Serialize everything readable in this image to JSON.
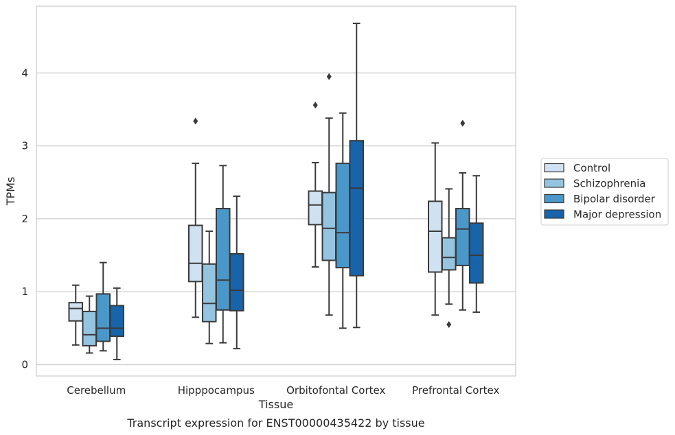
{
  "chart_data": {
    "type": "box",
    "xlabel": "Tissue",
    "ylabel": "TPMs",
    "caption": "Transcript expression for ENST00000435422 by tissue",
    "ylim": [
      -0.15,
      4.9
    ],
    "yticks": [
      0,
      1,
      2,
      3,
      4
    ],
    "grid": "horizontal",
    "legend_position": "right",
    "categories": [
      "Cerebellum",
      "Hipppocampus",
      "Orbitofontal Cortex",
      "Prefrontal Cortex"
    ],
    "series": [
      {
        "name": "Control",
        "color": "#d0e1f2",
        "boxes": [
          {
            "whislo": 0.27,
            "q1": 0.6,
            "med": 0.77,
            "q3": 0.85,
            "whishi": 1.09,
            "fliers": []
          },
          {
            "whislo": 0.65,
            "q1": 1.14,
            "med": 1.39,
            "q3": 1.91,
            "whishi": 2.76,
            "fliers": [
              3.34
            ]
          },
          {
            "whislo": 1.34,
            "q1": 1.92,
            "med": 2.19,
            "q3": 2.38,
            "whishi": 2.77,
            "fliers": [
              3.56
            ]
          },
          {
            "whislo": 0.68,
            "q1": 1.27,
            "med": 1.83,
            "q3": 2.24,
            "whishi": 3.04,
            "fliers": []
          }
        ]
      },
      {
        "name": "Schizophrenia",
        "color": "#94c4df",
        "boxes": [
          {
            "whislo": 0.16,
            "q1": 0.26,
            "med": 0.41,
            "q3": 0.73,
            "whishi": 0.94,
            "fliers": []
          },
          {
            "whislo": 0.29,
            "q1": 0.59,
            "med": 0.84,
            "q3": 1.38,
            "whishi": 1.83,
            "fliers": []
          },
          {
            "whislo": 0.68,
            "q1": 1.43,
            "med": 1.87,
            "q3": 2.36,
            "whishi": 3.38,
            "fliers": [
              3.95
            ]
          },
          {
            "whislo": 0.83,
            "q1": 1.3,
            "med": 1.47,
            "q3": 1.74,
            "whishi": 2.41,
            "fliers": [
              0.55
            ]
          }
        ]
      },
      {
        "name": "Bipolar disorder",
        "color": "#4a98c9",
        "boxes": [
          {
            "whislo": 0.19,
            "q1": 0.32,
            "med": 0.5,
            "q3": 0.97,
            "whishi": 1.4,
            "fliers": []
          },
          {
            "whislo": 0.3,
            "q1": 0.75,
            "med": 1.16,
            "q3": 2.14,
            "whishi": 2.73,
            "fliers": []
          },
          {
            "whislo": 0.5,
            "q1": 1.33,
            "med": 1.81,
            "q3": 2.76,
            "whishi": 3.45,
            "fliers": []
          },
          {
            "whislo": 0.75,
            "q1": 1.36,
            "med": 1.86,
            "q3": 2.14,
            "whishi": 2.63,
            "fliers": [
              3.31
            ]
          }
        ]
      },
      {
        "name": "Major depression",
        "color": "#1764ab",
        "boxes": [
          {
            "whislo": 0.07,
            "q1": 0.39,
            "med": 0.5,
            "q3": 0.81,
            "whishi": 1.05,
            "fliers": []
          },
          {
            "whislo": 0.22,
            "q1": 0.74,
            "med": 1.02,
            "q3": 1.52,
            "whishi": 2.31,
            "fliers": []
          },
          {
            "whislo": 0.51,
            "q1": 1.22,
            "med": 2.42,
            "q3": 3.07,
            "whishi": 4.68,
            "fliers": []
          },
          {
            "whislo": 0.72,
            "q1": 1.12,
            "med": 1.5,
            "q3": 1.94,
            "whishi": 2.59,
            "fliers": []
          }
        ]
      }
    ]
  }
}
